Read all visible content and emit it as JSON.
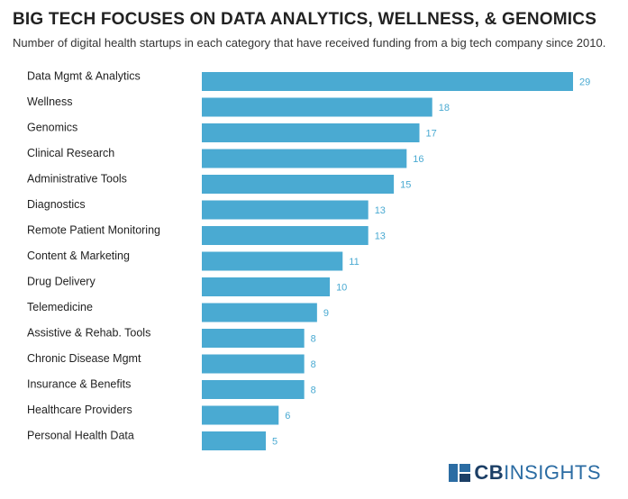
{
  "header": {
    "title": "BIG TECH FOCUSES ON DATA ANALYTICS, WELLNESS, & GENOMICS",
    "subtitle": "Number of digital health startups in each category that have received funding from a big tech company since 2010."
  },
  "brand": {
    "logo_text_bold": "CB",
    "logo_text_rest": "INSIGHTS"
  },
  "colors": {
    "bar": "#4aaad2",
    "value_label": "#4aaad2"
  },
  "chart_data": {
    "type": "bar",
    "orientation": "horizontal",
    "categories": [
      "Data Mgmt & Analytics",
      "Wellness",
      "Genomics",
      "Clinical Research",
      "Administrative Tools",
      "Diagnostics",
      "Remote Patient Monitoring",
      "Content & Marketing",
      "Drug Delivery",
      "Telemedicine",
      "Assistive & Rehab. Tools",
      "Chronic Disease Mgmt",
      "Insurance & Benefits",
      "Healthcare Providers",
      "Personal Health Data"
    ],
    "values": [
      29,
      18,
      17,
      16,
      15,
      13,
      13,
      11,
      10,
      9,
      8,
      8,
      8,
      6,
      5
    ],
    "xlim": [
      0,
      29
    ],
    "grid": false,
    "legend": "none"
  }
}
